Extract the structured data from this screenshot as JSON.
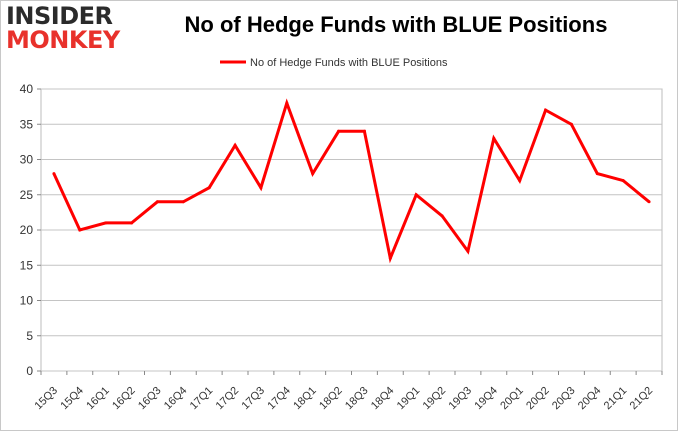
{
  "logo": {
    "line1": "INSIDER",
    "line2": "MONKEY"
  },
  "chart_data": {
    "type": "line",
    "title": "No of Hedge Funds with BLUE Positions",
    "xlabel": "",
    "ylabel": "",
    "ylim": [
      0,
      40
    ],
    "yticks": [
      0,
      5,
      10,
      15,
      20,
      25,
      30,
      35,
      40
    ],
    "grid": true,
    "legend_position": "top-center",
    "categories": [
      "15Q3",
      "15Q4",
      "16Q1",
      "16Q2",
      "16Q3",
      "16Q4",
      "17Q1",
      "17Q2",
      "17Q3",
      "17Q4",
      "18Q1",
      "18Q2",
      "18Q3",
      "18Q4",
      "19Q1",
      "19Q2",
      "19Q3",
      "19Q4",
      "20Q1",
      "20Q2",
      "20Q3",
      "20Q4",
      "21Q1",
      "21Q2"
    ],
    "series": [
      {
        "name": "No of Hedge Funds with BLUE Positions",
        "color": "#ff0000",
        "values": [
          28,
          20,
          21,
          21,
          24,
          24,
          26,
          32,
          26,
          38,
          28,
          34,
          34,
          16,
          25,
          22,
          17,
          33,
          27,
          37,
          35,
          28,
          27,
          24
        ]
      }
    ]
  }
}
